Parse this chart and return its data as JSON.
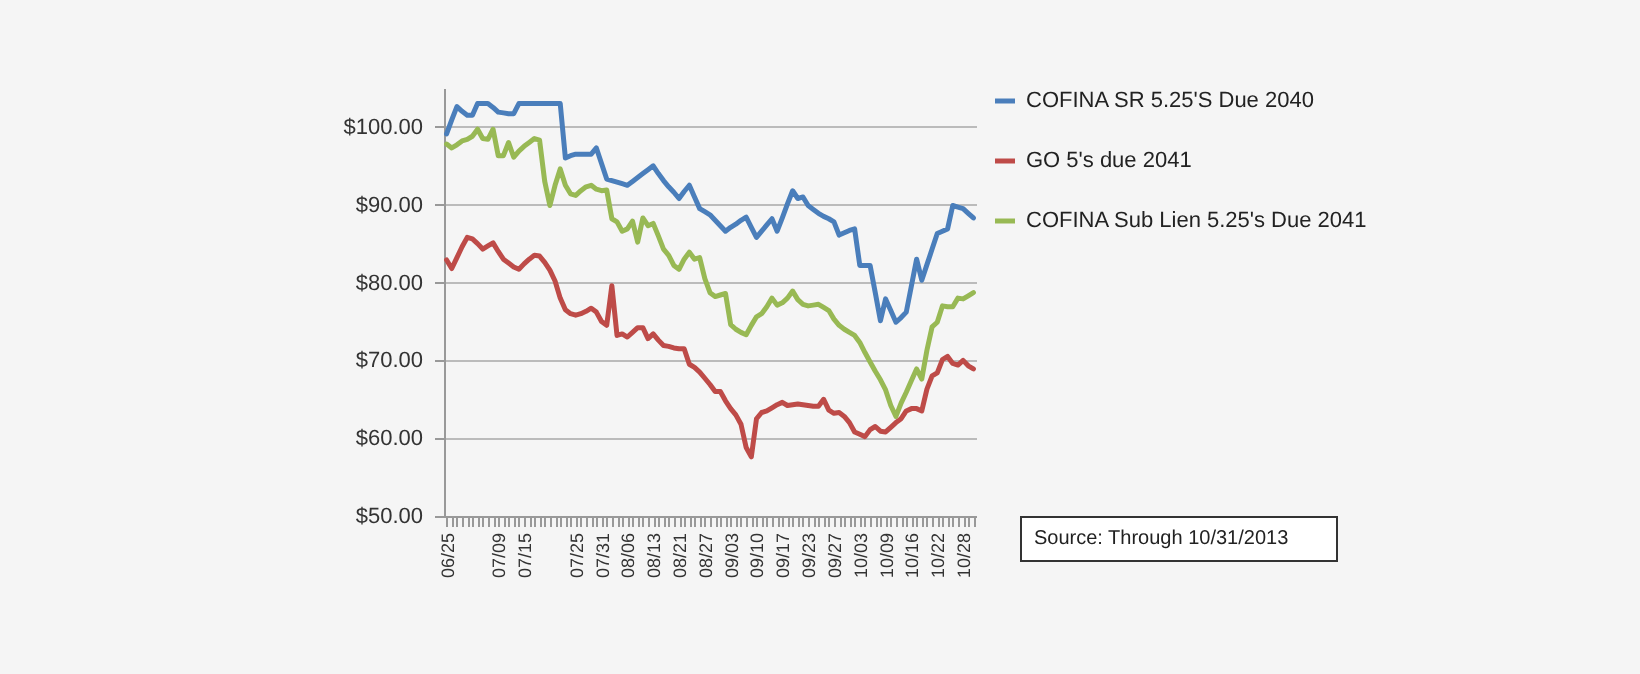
{
  "chart_data": {
    "type": "line",
    "categories": [
      "06/25",
      null,
      null,
      null,
      null,
      null,
      null,
      null,
      null,
      null,
      "07/09",
      null,
      null,
      null,
      null,
      "07/15",
      null,
      null,
      null,
      null,
      null,
      null,
      null,
      null,
      null,
      "07/25",
      null,
      null,
      null,
      null,
      "07/31",
      null,
      null,
      null,
      null,
      "08/06",
      null,
      null,
      null,
      null,
      "08/13",
      null,
      null,
      null,
      null,
      "08/21",
      null,
      null,
      null,
      null,
      "08/27",
      null,
      null,
      null,
      null,
      "09/03",
      null,
      null,
      null,
      null,
      "09/10",
      null,
      null,
      null,
      null,
      "09/17",
      null,
      null,
      null,
      null,
      "09/23",
      null,
      null,
      null,
      null,
      "09/27",
      null,
      null,
      null,
      null,
      "10/03",
      null,
      null,
      null,
      null,
      "10/09",
      null,
      null,
      null,
      null,
      "10/16",
      null,
      null,
      null,
      null,
      "10/22",
      null,
      null,
      null,
      null,
      "10/28",
      null,
      null
    ],
    "series": [
      {
        "name": "COFINA SR 5.25'S Due 2040",
        "color": "#4a7ebb",
        "values": [
          99.1,
          100.9,
          102.6,
          102,
          101.5,
          101.5,
          103,
          103,
          103,
          102.5,
          101.9,
          101.8,
          101.7,
          101.7,
          103,
          103,
          103,
          103,
          103,
          103,
          103,
          103,
          103,
          96,
          96.3,
          96.5,
          96.5,
          96.5,
          96.5,
          97.3,
          95.3,
          93.3,
          93.1,
          92.9,
          92.7,
          92.5,
          93,
          93.5,
          94,
          94.5,
          95,
          94,
          93.1,
          92.3,
          91.6,
          90.8,
          91.7,
          92.5,
          91,
          89.5,
          89.1,
          88.7,
          88,
          87.3,
          86.6,
          87.1,
          87.5,
          88,
          88.4,
          87.1,
          85.8,
          86.6,
          87.4,
          88.2,
          86.6,
          88.3,
          90.1,
          91.8,
          90.8,
          91,
          89.9,
          89.4,
          88.9,
          88.5,
          88.2,
          87.8,
          86.1,
          86.4,
          86.7,
          86.9,
          82.2,
          82.2,
          82.2,
          78.7,
          75.1,
          77.9,
          76.4,
          74.9,
          75.5,
          76.2,
          79.6,
          83,
          80.3,
          82.3,
          84.3,
          86.3,
          86.6,
          86.9,
          89.9,
          89.7,
          89.5,
          88.9,
          88.3
        ]
      },
      {
        "name": "GO 5's due 2041",
        "color": "#be4b48",
        "values": [
          82.9,
          81.8,
          83.2,
          84.6,
          85.8,
          85.6,
          85,
          84.3,
          84.7,
          85.1,
          84,
          83,
          82.5,
          82,
          81.7,
          82.4,
          83,
          83.5,
          83.4,
          82.6,
          81.6,
          80.2,
          78,
          76.5,
          76,
          75.8,
          76,
          76.3,
          76.7,
          76.2,
          75,
          74.5,
          79.6,
          73.2,
          73.4,
          73,
          73.6,
          74.2,
          74.2,
          72.8,
          73.4,
          72.6,
          71.9,
          71.8,
          71.6,
          71.5,
          71.5,
          69.5,
          69.1,
          68.5,
          67.7,
          66.9,
          66,
          66,
          64.8,
          63.8,
          63,
          61.8,
          58.8,
          57.6,
          62.5,
          63.3,
          63.5,
          63.9,
          64.3,
          64.6,
          64.2,
          64.3,
          64.4,
          64.3,
          64.2,
          64.1,
          64.1,
          65,
          63.6,
          63.2,
          63.3,
          62.8,
          62,
          60.8,
          60.5,
          60.2,
          61.1,
          61.5,
          60.9,
          60.8,
          61.4,
          62,
          62.5,
          63.5,
          63.8,
          63.8,
          63.5,
          66.3,
          68,
          68.4,
          70.1,
          70.5,
          69.6,
          69.4,
          70,
          69.3,
          68.9
        ]
      },
      {
        "name": "COFINA Sub Lien 5.25's Due 2041",
        "color": "#98b954",
        "values": [
          97.8,
          97.3,
          97.7,
          98.2,
          98.4,
          98.8,
          99.7,
          98.5,
          98.4,
          99.7,
          96.3,
          96.3,
          98,
          96.1,
          96.9,
          97.5,
          98,
          98.5,
          98.3,
          93,
          89.9,
          92.5,
          94.6,
          92.5,
          91.4,
          91.2,
          91.8,
          92.3,
          92.5,
          92,
          91.8,
          91.9,
          88.2,
          87.8,
          86.6,
          86.9,
          87.9,
          85.2,
          88.3,
          87.3,
          87.6,
          86,
          84.3,
          83.5,
          82.2,
          81.7,
          83,
          83.9,
          83,
          83.2,
          80.5,
          78.7,
          78.2,
          78.4,
          78.6,
          74.6,
          74,
          73.6,
          73.3,
          74.5,
          75.6,
          76,
          76.9,
          78,
          77.1,
          77.4,
          78,
          78.9,
          77.8,
          77.2,
          77,
          77.1,
          77.2,
          76.8,
          76.4,
          75.3,
          74.5,
          74,
          73.6,
          73.2,
          72.3,
          71,
          69.8,
          68.6,
          67.5,
          66.2,
          64.2,
          62.8,
          64.5,
          65.9,
          67.4,
          68.9,
          67.6,
          71.3,
          74.3,
          74.9,
          77,
          76.9,
          76.9,
          78,
          77.9,
          78.3,
          78.7
        ]
      }
    ],
    "ylim": [
      50,
      105
    ],
    "yticks": [
      {
        "value": 50,
        "label": "$50.00"
      },
      {
        "value": 60,
        "label": "$60.00"
      },
      {
        "value": 70,
        "label": "$70.00"
      },
      {
        "value": 80,
        "label": "$80.00"
      },
      {
        "value": 90,
        "label": "$90.00"
      },
      {
        "value": 100,
        "label": "$100.00"
      }
    ],
    "grid": "y",
    "legend": "right",
    "annotations": [
      "Source: Through 10/31/2013"
    ]
  }
}
